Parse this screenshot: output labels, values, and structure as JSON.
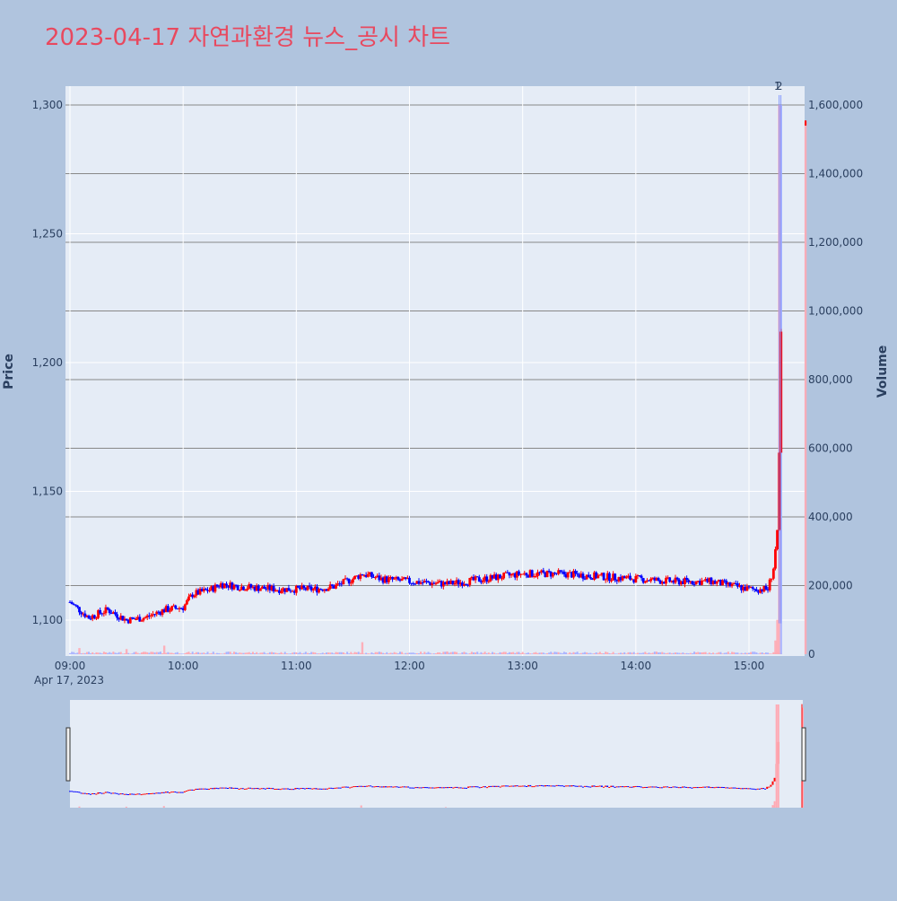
{
  "chart_data": {
    "type": "candlestick",
    "title": "2023-04-17 자연과환경 뉴스_공시 차트",
    "ylabel": "Price",
    "y2label": "Volume",
    "xlabel": "",
    "date_label": "Apr 17, 2023",
    "x_ticks": [
      "09:00",
      "10:00",
      "11:00",
      "12:00",
      "13:00",
      "14:00",
      "15:00"
    ],
    "y_ticks": [
      "1,100",
      "1,150",
      "1,200",
      "1,250",
      "1,300"
    ],
    "y_tick_values": [
      1100,
      1150,
      1200,
      1250,
      1300
    ],
    "y2_ticks": [
      "0",
      "200,000",
      "400,000",
      "600,000",
      "800,000",
      "1,000,000",
      "1,200,000",
      "1,400,000",
      "1,600,000"
    ],
    "y2_tick_values": [
      0,
      200000,
      400000,
      600000,
      800000,
      1000000,
      1200000,
      1400000,
      1600000
    ],
    "ylim": [
      1086,
      1307
    ],
    "y2lim": [
      0,
      1600000
    ],
    "xlim": [
      "09:00",
      "15:30"
    ],
    "annotations": [
      "1",
      "2"
    ],
    "colors": {
      "up": "#ff0000",
      "down": "#0000ff",
      "background": "#b0c4de",
      "plot_bg": "#e5ecf6",
      "title": "#e8495f",
      "volume_up": "#ffaab4",
      "volume_down": "#aab4ff"
    },
    "price_keypoints": [
      [
        "09:00",
        1107
      ],
      [
        "09:10",
        1101
      ],
      [
        "09:20",
        1104
      ],
      [
        "09:30",
        1100
      ],
      [
        "09:40",
        1101
      ],
      [
        "09:50",
        1104
      ],
      [
        "10:00",
        1105
      ],
      [
        "10:05",
        1110
      ],
      [
        "10:15",
        1112
      ],
      [
        "10:20",
        1114
      ],
      [
        "10:30",
        1113
      ],
      [
        "10:50",
        1112
      ],
      [
        "11:10",
        1112
      ],
      [
        "11:20",
        1113
      ],
      [
        "11:30",
        1116
      ],
      [
        "11:35",
        1118
      ],
      [
        "11:45",
        1116
      ],
      [
        "12:00",
        1115
      ],
      [
        "12:20",
        1114
      ],
      [
        "12:40",
        1116
      ],
      [
        "13:00",
        1118
      ],
      [
        "13:20",
        1118
      ],
      [
        "13:40",
        1117
      ],
      [
        "14:00",
        1116
      ],
      [
        "14:20",
        1115
      ],
      [
        "14:40",
        1115
      ],
      [
        "15:00",
        1112
      ],
      [
        "15:10",
        1112
      ],
      [
        "15:13",
        1120
      ],
      [
        "15:15",
        1135
      ],
      [
        "15:16",
        1165
      ],
      [
        "15:17",
        1212
      ],
      [
        "15:30",
        1293
      ]
    ],
    "volume_keypoints": [
      [
        "09:05",
        18000
      ],
      [
        "09:30",
        15000
      ],
      [
        "09:50",
        25000
      ],
      [
        "11:35",
        35000
      ],
      [
        "12:20",
        8000
      ],
      [
        "15:14",
        40000
      ],
      [
        "15:15",
        100000
      ],
      [
        "15:16",
        1600000
      ],
      [
        "15:17",
        1600000
      ],
      [
        "15:30",
        1550000
      ]
    ]
  }
}
